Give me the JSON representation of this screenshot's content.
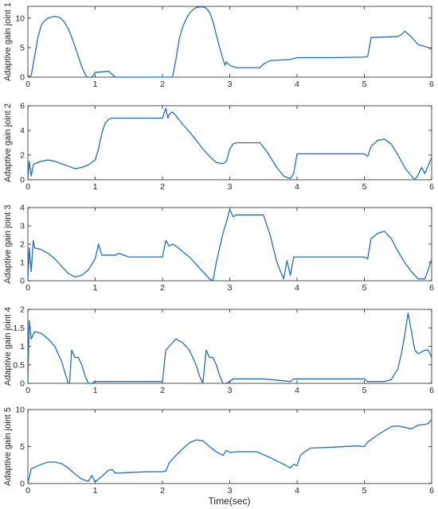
{
  "figure": {
    "xlabel": "Time(sec)",
    "line_color": "#1f6fbf",
    "axis_color": "#262626"
  },
  "chart_data": [
    {
      "type": "line",
      "ylabel": "Adaptive gain joint 1",
      "xlim": [
        0,
        6
      ],
      "ylim": [
        0,
        12
      ],
      "xticks": [
        0,
        1,
        2,
        3,
        4,
        5,
        6
      ],
      "yticks": [
        0,
        5,
        10
      ],
      "grid": false,
      "series": [
        {
          "x": [
            0.0,
            0.05,
            0.1,
            0.15,
            0.2,
            0.25,
            0.3,
            0.35,
            0.4,
            0.45,
            0.5,
            0.55,
            0.6,
            0.65,
            0.7,
            0.75,
            0.8,
            0.85,
            0.88,
            0.9,
            0.95,
            1.0,
            1.1,
            1.2,
            1.25,
            1.3,
            1.5,
            1.8,
            2.0,
            2.15,
            2.2,
            2.25,
            2.3,
            2.35,
            2.4,
            2.45,
            2.5,
            2.55,
            2.6,
            2.65,
            2.7,
            2.75,
            2.8,
            2.85,
            2.9,
            2.93,
            2.95,
            3.0,
            3.1,
            3.3,
            3.45,
            3.5,
            3.6,
            3.9,
            4.0,
            4.5,
            5.0,
            5.05,
            5.1,
            5.5,
            5.55,
            5.6,
            5.7,
            5.8,
            5.9,
            5.95,
            6.0
          ],
          "values": [
            0,
            0.3,
            3.5,
            6.8,
            8.8,
            9.6,
            10.0,
            10.2,
            10.3,
            10.2,
            9.9,
            9.2,
            8.2,
            6.8,
            5.2,
            3.5,
            1.8,
            0.5,
            0,
            0,
            0,
            0.8,
            0.9,
            1.0,
            0.5,
            0,
            0,
            0,
            0,
            0,
            3.0,
            6.5,
            8.5,
            9.8,
            10.8,
            11.4,
            11.8,
            11.9,
            11.9,
            11.7,
            11.0,
            9.5,
            7.2,
            5.0,
            3.0,
            2.0,
            2.6,
            2.0,
            1.6,
            1.6,
            1.6,
            2.2,
            2.8,
            3.0,
            3.3,
            3.3,
            3.4,
            3.5,
            6.7,
            6.9,
            7.2,
            7.8,
            6.8,
            5.5,
            5.2,
            5.0,
            4.7
          ]
        }
      ]
    },
    {
      "type": "line",
      "ylabel": "Adaptive gain joint 2",
      "xlim": [
        0,
        6
      ],
      "ylim": [
        0,
        6
      ],
      "xticks": [
        0,
        1,
        2,
        3,
        4,
        5,
        6
      ],
      "yticks": [
        0,
        2,
        4,
        6
      ],
      "grid": false,
      "series": [
        {
          "x": [
            0.0,
            0.02,
            0.05,
            0.08,
            0.1,
            0.2,
            0.3,
            0.4,
            0.5,
            0.6,
            0.7,
            0.8,
            0.9,
            1.0,
            1.05,
            1.1,
            1.15,
            1.2,
            1.25,
            1.3,
            1.5,
            1.8,
            2.0,
            2.05,
            2.08,
            2.1,
            2.12,
            2.15,
            2.2,
            2.3,
            2.4,
            2.5,
            2.6,
            2.7,
            2.8,
            2.9,
            2.95,
            3.0,
            3.05,
            3.1,
            3.45,
            3.55,
            3.7,
            3.8,
            3.9,
            3.95,
            4.0,
            4.5,
            5.0,
            5.05,
            5.1,
            5.2,
            5.3,
            5.4,
            5.5,
            5.6,
            5.7,
            5.75,
            5.8,
            5.85,
            5.9,
            6.0
          ],
          "values": [
            0,
            1.5,
            0.3,
            1.2,
            1.3,
            1.5,
            1.6,
            1.5,
            1.3,
            1.1,
            0.9,
            1.0,
            1.2,
            1.6,
            2.5,
            3.8,
            4.6,
            4.9,
            5.0,
            5.0,
            5.0,
            5.0,
            5.0,
            5.8,
            5.0,
            5.3,
            5.4,
            5.5,
            5.2,
            4.5,
            3.9,
            3.2,
            2.5,
            1.9,
            1.4,
            1.3,
            1.5,
            2.5,
            2.9,
            3.0,
            3.0,
            2.3,
            1.0,
            0.3,
            0.1,
            0.5,
            2.1,
            2.1,
            2.1,
            1.9,
            2.7,
            3.2,
            3.3,
            2.9,
            2.0,
            1.0,
            0.3,
            0,
            0.4,
            1.0,
            0.5,
            1.8
          ]
        }
      ]
    },
    {
      "type": "line",
      "ylabel": "Adaptive gain joint 3",
      "xlim": [
        0,
        6
      ],
      "ylim": [
        0,
        4
      ],
      "xticks": [
        0,
        1,
        2,
        3,
        4,
        5,
        6
      ],
      "yticks": [
        0,
        1,
        2,
        3,
        4
      ],
      "grid": false,
      "series": [
        {
          "x": [
            0.0,
            0.02,
            0.05,
            0.08,
            0.1,
            0.2,
            0.3,
            0.4,
            0.5,
            0.6,
            0.7,
            0.8,
            0.9,
            1.0,
            1.05,
            1.1,
            1.2,
            1.3,
            1.35,
            1.5,
            1.8,
            2.0,
            2.05,
            2.1,
            2.15,
            2.2,
            2.3,
            2.4,
            2.5,
            2.6,
            2.7,
            2.75,
            2.8,
            2.9,
            2.95,
            3.0,
            3.05,
            3.1,
            3.5,
            3.6,
            3.7,
            3.8,
            3.85,
            3.9,
            3.95,
            4.0,
            4.5,
            5.0,
            5.05,
            5.1,
            5.2,
            5.3,
            5.4,
            5.5,
            5.6,
            5.7,
            5.8,
            5.9,
            5.95,
            6.0
          ],
          "values": [
            0,
            1.8,
            0.5,
            2.2,
            1.8,
            1.7,
            1.5,
            1.2,
            0.8,
            0.4,
            0.2,
            0.3,
            0.6,
            1.2,
            2.0,
            1.4,
            1.4,
            1.4,
            1.5,
            1.3,
            1.3,
            1.3,
            2.2,
            1.9,
            2.0,
            1.9,
            1.6,
            1.3,
            0.9,
            0.5,
            0.1,
            0,
            1.0,
            2.6,
            3.2,
            3.9,
            3.5,
            3.6,
            3.6,
            2.5,
            1.0,
            0.1,
            1.1,
            0.3,
            1.3,
            1.3,
            1.3,
            1.3,
            1.2,
            2.3,
            2.6,
            2.7,
            2.3,
            1.6,
            1.0,
            0.5,
            0.1,
            0.1,
            0.6,
            1.2
          ]
        }
      ]
    },
    {
      "type": "line",
      "ylabel": "Adaptive gain joint 4",
      "xlim": [
        0,
        6
      ],
      "ylim": [
        0,
        2
      ],
      "xticks": [
        0,
        1,
        2,
        3,
        4,
        5,
        6
      ],
      "yticks": [
        0,
        0.5,
        1,
        1.5,
        2
      ],
      "grid": false,
      "series": [
        {
          "x": [
            0.0,
            0.02,
            0.05,
            0.1,
            0.2,
            0.3,
            0.4,
            0.5,
            0.55,
            0.6,
            0.62,
            0.65,
            0.7,
            0.75,
            0.8,
            0.85,
            0.9,
            0.95,
            1.0,
            1.5,
            2.0,
            2.05,
            2.1,
            2.2,
            2.3,
            2.4,
            2.5,
            2.55,
            2.6,
            2.65,
            2.7,
            2.75,
            2.8,
            2.85,
            2.9,
            2.95,
            3.0,
            3.05,
            3.5,
            3.9,
            3.95,
            4.0,
            4.5,
            5.0,
            5.05,
            5.1,
            5.3,
            5.4,
            5.5,
            5.55,
            5.6,
            5.65,
            5.7,
            5.75,
            5.8,
            5.9,
            5.95,
            6.0
          ],
          "values": [
            0,
            1.7,
            1.2,
            1.4,
            1.35,
            1.2,
            1.0,
            0.6,
            0.3,
            0,
            0,
            0.9,
            0.7,
            0.7,
            0.5,
            0.2,
            0,
            0,
            0.05,
            0.05,
            0.05,
            0.9,
            1.0,
            1.2,
            1.1,
            0.9,
            0.5,
            0.2,
            0,
            0.9,
            0.7,
            0.7,
            0.5,
            0.2,
            0,
            0,
            0.05,
            0.12,
            0.12,
            0.05,
            0.12,
            0.12,
            0.12,
            0.12,
            0.05,
            0.05,
            0.05,
            0.1,
            0.4,
            0.8,
            1.3,
            1.9,
            1.4,
            0.9,
            0.8,
            0.9,
            0.9,
            0.7
          ]
        }
      ]
    },
    {
      "type": "line",
      "ylabel": "Adaptive gain joint 5",
      "xlim": [
        0,
        6
      ],
      "ylim": [
        0,
        10
      ],
      "xticks": [
        0,
        1,
        2,
        3,
        4,
        5,
        6
      ],
      "yticks": [
        0,
        5,
        10
      ],
      "grid": false,
      "series": [
        {
          "x": [
            0.0,
            0.05,
            0.1,
            0.2,
            0.3,
            0.4,
            0.5,
            0.6,
            0.7,
            0.8,
            0.9,
            0.95,
            1.0,
            1.1,
            1.2,
            1.25,
            1.3,
            1.5,
            1.8,
            2.0,
            2.05,
            2.1,
            2.2,
            2.3,
            2.4,
            2.5,
            2.6,
            2.7,
            2.8,
            2.9,
            2.95,
            3.0,
            3.1,
            3.4,
            3.6,
            3.8,
            3.9,
            3.95,
            4.0,
            4.05,
            4.1,
            4.2,
            4.5,
            4.9,
            5.0,
            5.05,
            5.2,
            5.4,
            5.5,
            5.6,
            5.7,
            5.8,
            5.9,
            5.95,
            6.0
          ],
          "values": [
            0,
            2.0,
            2.2,
            2.6,
            2.9,
            2.9,
            2.7,
            2.1,
            1.3,
            0.6,
            0.3,
            1.1,
            0.2,
            1.0,
            1.8,
            1.9,
            1.4,
            1.5,
            1.6,
            1.6,
            1.7,
            2.8,
            3.8,
            4.7,
            5.5,
            5.9,
            5.8,
            5.0,
            4.3,
            3.8,
            4.5,
            4.2,
            4.3,
            4.3,
            3.5,
            2.6,
            2.1,
            2.6,
            2.4,
            3.8,
            4.2,
            4.8,
            4.9,
            5.1,
            5.0,
            5.6,
            6.6,
            7.7,
            7.8,
            7.6,
            7.4,
            7.9,
            8.0,
            8.1,
            8.7
          ]
        }
      ]
    }
  ]
}
